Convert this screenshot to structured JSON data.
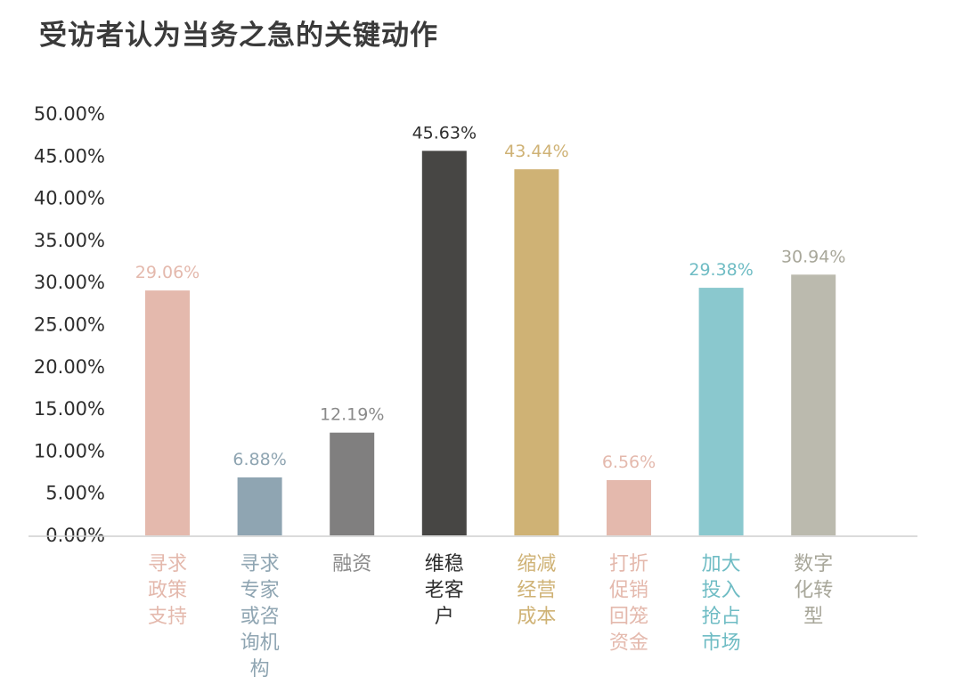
{
  "chart_data": {
    "type": "bar",
    "title": "受访者认为当务之急的关键动作",
    "xlabel": "",
    "ylabel": "",
    "ylim": [
      0,
      50
    ],
    "y_ticks": [
      "0.00%",
      "5.00%",
      "10.00%",
      "15.00%",
      "20.00%",
      "25.00%",
      "30.00%",
      "35.00%",
      "40.00%",
      "45.00%",
      "50.00%"
    ],
    "grid": false,
    "legend": "none",
    "categories": [
      "寻求政策支持",
      "寻求专家或咨询机构",
      "融资",
      "维稳老客户",
      "缩减经营成本",
      "打折促销回笼资金",
      "加大投入抢占市场",
      "数字化转型"
    ],
    "category_lines": [
      [
        "寻求",
        "政策",
        "支持"
      ],
      [
        "寻求",
        "专家",
        "或咨",
        "询机",
        "构"
      ],
      [
        "融资"
      ],
      [
        "维稳",
        "老客",
        "户"
      ],
      [
        "缩减",
        "经营",
        "成本"
      ],
      [
        "打折",
        "促销",
        "回笼",
        "资金"
      ],
      [
        "加大",
        "投入",
        "抢占",
        "市场"
      ],
      [
        "数字",
        "化转",
        "型"
      ]
    ],
    "values": [
      29.06,
      6.88,
      12.19,
      45.63,
      43.44,
      6.56,
      29.38,
      30.94
    ],
    "value_labels": [
      "29.06%",
      "6.88%",
      "12.19%",
      "45.63%",
      "43.44%",
      "6.56%",
      "29.38%",
      "30.94%"
    ],
    "bar_colors": [
      "#e4b9ad",
      "#8fa5b2",
      "#807f7f",
      "#474644",
      "#cfb275",
      "#e4b9ad",
      "#8ac8ce",
      "#bbbaae"
    ],
    "label_colors": [
      "#e4b9ad",
      "#8fa5b2",
      "#8a8a8a",
      "#2e2e2e",
      "#cfb275",
      "#e4b9ad",
      "#6fbcc4",
      "#a8a79a"
    ],
    "axis_color": "#cfcfcf"
  }
}
